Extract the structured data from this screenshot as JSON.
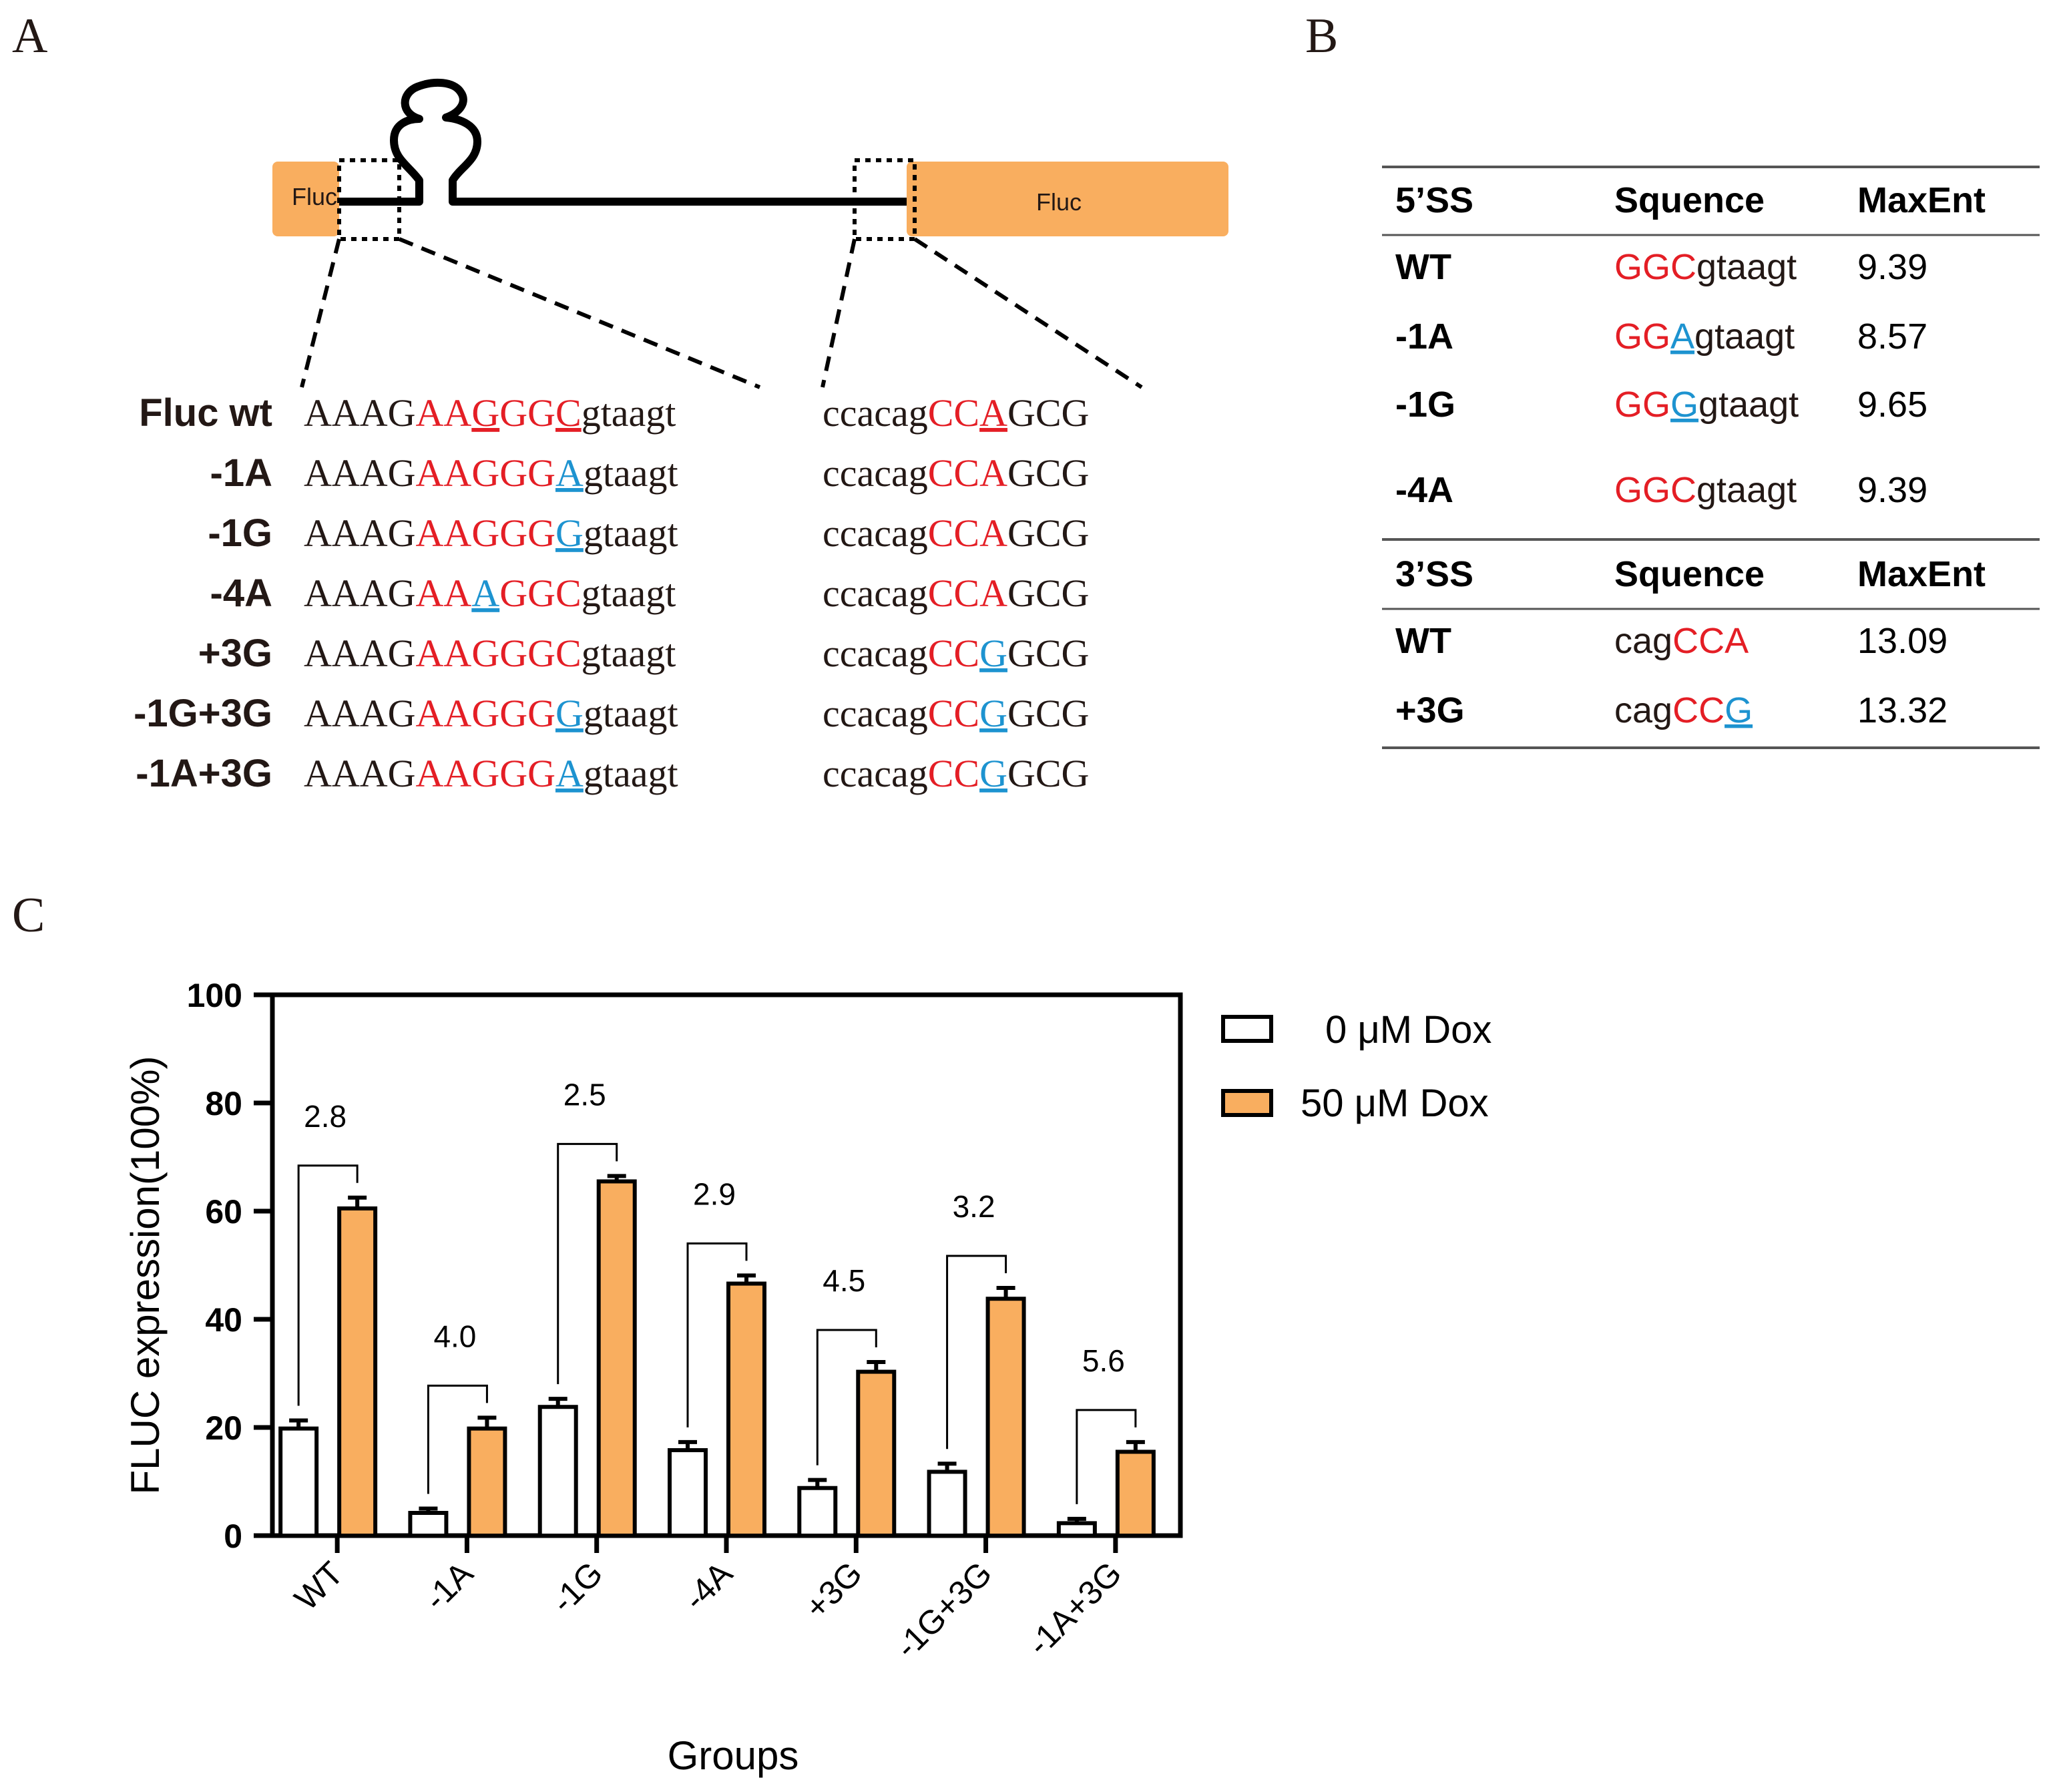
{
  "panels": {
    "a": "A",
    "b": "B",
    "c": "C"
  },
  "colors": {
    "exon": "#F9AE5F",
    "red": "#E41E25",
    "blue": "#1D93D0",
    "dark": "#231815"
  },
  "diagram": {
    "exon_left_label": "Fluc",
    "exon_right_label": "Fluc"
  },
  "sequences": [
    {
      "label": "Fluc  wt",
      "s5": [
        {
          "t": "AAAG",
          "c": "k"
        },
        {
          "t": "AA",
          "c": "r"
        },
        {
          "t": "G",
          "c": "r",
          "u": true
        },
        {
          "t": "GG",
          "c": "r"
        },
        {
          "t": "C",
          "c": "r",
          "u": true
        },
        {
          "t": "gtaagt",
          "c": "k"
        }
      ],
      "s3": [
        {
          "t": "ccacag",
          "c": "k"
        },
        {
          "t": "CC",
          "c": "r"
        },
        {
          "t": "A",
          "c": "r",
          "u": true
        },
        {
          "t": "GCG",
          "c": "k"
        }
      ]
    },
    {
      "label": "-1A",
      "s5": [
        {
          "t": "AAAG",
          "c": "k"
        },
        {
          "t": "AAGGG",
          "c": "r"
        },
        {
          "t": "A",
          "c": "b",
          "u": true
        },
        {
          "t": "gtaagt",
          "c": "k"
        }
      ],
      "s3": [
        {
          "t": "ccacag",
          "c": "k"
        },
        {
          "t": "CCA",
          "c": "r"
        },
        {
          "t": "GCG",
          "c": "k"
        }
      ]
    },
    {
      "label": "-1G",
      "s5": [
        {
          "t": "AAAG",
          "c": "k"
        },
        {
          "t": "AAGGG",
          "c": "r"
        },
        {
          "t": "G",
          "c": "b",
          "u": true
        },
        {
          "t": "gtaagt",
          "c": "k"
        }
      ],
      "s3": [
        {
          "t": "ccacag",
          "c": "k"
        },
        {
          "t": "CCA",
          "c": "r"
        },
        {
          "t": "GCG",
          "c": "k"
        }
      ]
    },
    {
      "label": "-4A",
      "s5": [
        {
          "t": "AAAG",
          "c": "k"
        },
        {
          "t": "AA",
          "c": "r"
        },
        {
          "t": "A",
          "c": "b",
          "u": true
        },
        {
          "t": "GGC",
          "c": "r"
        },
        {
          "t": "gtaagt",
          "c": "k"
        }
      ],
      "s3": [
        {
          "t": "ccacag",
          "c": "k"
        },
        {
          "t": "CCA",
          "c": "r"
        },
        {
          "t": "GCG",
          "c": "k"
        }
      ]
    },
    {
      "label": "+3G",
      "s5": [
        {
          "t": "AAAG",
          "c": "k"
        },
        {
          "t": "AAGGGC",
          "c": "r"
        },
        {
          "t": "gtaagt",
          "c": "k"
        }
      ],
      "s3": [
        {
          "t": "ccacag",
          "c": "k"
        },
        {
          "t": "CC",
          "c": "r"
        },
        {
          "t": "G",
          "c": "b",
          "u": true
        },
        {
          "t": "GCG",
          "c": "k"
        }
      ]
    },
    {
      "label": "-1G+3G",
      "s5": [
        {
          "t": "AAAG",
          "c": "k"
        },
        {
          "t": "AAGGG",
          "c": "r"
        },
        {
          "t": "G",
          "c": "b",
          "u": true
        },
        {
          "t": "gtaagt",
          "c": "k"
        }
      ],
      "s3": [
        {
          "t": "ccacag",
          "c": "k"
        },
        {
          "t": "CC",
          "c": "r"
        },
        {
          "t": "G",
          "c": "b",
          "u": true
        },
        {
          "t": "GCG",
          "c": "k"
        }
      ]
    },
    {
      "label": "-1A+3G",
      "s5": [
        {
          "t": "AAAG",
          "c": "k"
        },
        {
          "t": "AAGGG",
          "c": "r"
        },
        {
          "t": "A",
          "c": "b",
          "u": true
        },
        {
          "t": "gtaagt",
          "c": "k"
        }
      ],
      "s3": [
        {
          "t": "ccacag",
          "c": "k"
        },
        {
          "t": "CC",
          "c": "r"
        },
        {
          "t": "G",
          "c": "b",
          "u": true
        },
        {
          "t": "GCG",
          "c": "k"
        }
      ]
    }
  ],
  "table": {
    "sections": [
      {
        "headers": [
          "5’SS",
          "Squence",
          "MaxEnt"
        ],
        "rows": [
          {
            "name": "WT",
            "seq": [
              {
                "t": "GGC",
                "c": "r"
              },
              {
                "t": "gtaagt",
                "c": "k"
              }
            ],
            "maxent": "9.39"
          },
          {
            "name": "-1A",
            "seq": [
              {
                "t": "GG",
                "c": "r"
              },
              {
                "t": "A",
                "c": "b",
                "u": true
              },
              {
                "t": "gtaagt",
                "c": "k"
              }
            ],
            "maxent": "8.57"
          },
          {
            "name": "-1G",
            "seq": [
              {
                "t": "GG",
                "c": "r"
              },
              {
                "t": "G",
                "c": "b",
                "u": true
              },
              {
                "t": "gtaagt",
                "c": "k"
              }
            ],
            "maxent": "9.65"
          },
          {
            "name": "-4A",
            "seq": [
              {
                "t": "GGC",
                "c": "r"
              },
              {
                "t": "gtaagt",
                "c": "k"
              }
            ],
            "maxent": "9.39"
          }
        ]
      },
      {
        "headers": [
          "3’SS",
          "Squence",
          "MaxEnt"
        ],
        "rows": [
          {
            "name": "WT",
            "seq": [
              {
                "t": "cag",
                "c": "k"
              },
              {
                "t": "CCA",
                "c": "r"
              }
            ],
            "maxent": "13.09"
          },
          {
            "name": "+3G",
            "seq": [
              {
                "t": "cag",
                "c": "k"
              },
              {
                "t": "CC",
                "c": "r"
              },
              {
                "t": "G",
                "c": "b",
                "u": true
              }
            ],
            "maxent": "13.32"
          }
        ]
      }
    ]
  },
  "chart_data": {
    "type": "bar",
    "categories": [
      "WT",
      "-1A",
      "-1G",
      "-4A",
      "+3G",
      "-1G+3G",
      "-1A+3G"
    ],
    "series": [
      {
        "name": "0 μM Dox",
        "values": [
          19.8,
          4.2,
          23.8,
          15.8,
          8.8,
          11.8,
          2.3
        ],
        "errors": [
          1.5,
          0.8,
          1.5,
          1.5,
          1.5,
          1.5,
          0.8
        ],
        "color": "#FFFFFF"
      },
      {
        "name": "50 μM Dox",
        "values": [
          60.5,
          19.8,
          65.5,
          46.6,
          30.3,
          43.8,
          15.5
        ],
        "errors": [
          2.0,
          2.0,
          1.0,
          1.5,
          1.8,
          2.0,
          1.8
        ],
        "color": "#F9AE5F"
      }
    ],
    "ratios": [
      "2.8",
      "4.0",
      "2.5",
      "2.9",
      "4.5",
      "3.2",
      "5.6"
    ],
    "ylim": [
      0,
      100
    ],
    "yticks": [
      0,
      20,
      40,
      60,
      80,
      100
    ],
    "ylabel": "FLUC expression(100%)",
    "xlabel": "Groups",
    "legend_position": "right"
  }
}
